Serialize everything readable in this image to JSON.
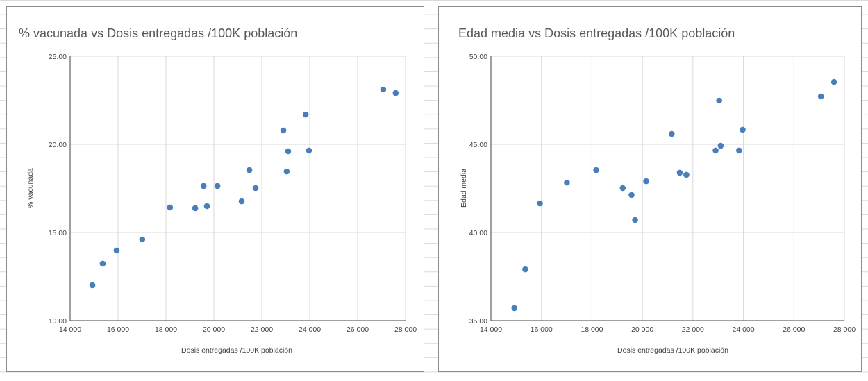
{
  "chart_data": [
    {
      "type": "scatter",
      "title": "% vacunada vs Dosis entregadas /100K población",
      "xlabel": "Dosis entregadas /100K población",
      "ylabel": "% vacunada",
      "xlim": [
        14000,
        28000
      ],
      "ylim": [
        10,
        25
      ],
      "xticks": [
        14000,
        16000,
        18000,
        20000,
        22000,
        24000,
        26000,
        28000
      ],
      "xtick_labels": [
        "14 000",
        "16 000",
        "18 000",
        "20 000",
        "22 000",
        "24 000",
        "26 000",
        "28 000"
      ],
      "yticks": [
        10,
        15,
        20,
        25
      ],
      "ytick_labels": [
        "10.00",
        "15.00",
        "20.00",
        "25.00"
      ],
      "grid": true,
      "color": "#4a7ebb",
      "x": [
        14930,
        15360,
        15940,
        17010,
        18170,
        19220,
        19570,
        19710,
        20150,
        21160,
        21480,
        21740,
        22900,
        23040,
        23100,
        23830,
        23970,
        27070,
        27590
      ],
      "y": [
        12.01,
        13.23,
        13.98,
        14.61,
        16.42,
        16.38,
        17.64,
        16.5,
        17.64,
        16.77,
        18.54,
        17.52,
        20.79,
        18.46,
        19.61,
        21.69,
        19.65,
        23.11,
        22.91
      ]
    },
    {
      "type": "scatter",
      "title": "Edad media vs Dosis entregadas /100K población",
      "xlabel": "Dosis entregadas /100K población",
      "ylabel": "Edad media",
      "xlim": [
        14000,
        28000
      ],
      "ylim": [
        35,
        50
      ],
      "xticks": [
        14000,
        16000,
        18000,
        20000,
        22000,
        24000,
        26000,
        28000
      ],
      "xtick_labels": [
        "14 000",
        "16 000",
        "18 000",
        "20 000",
        "22 000",
        "24 000",
        "26 000",
        "28 000"
      ],
      "yticks": [
        35,
        40,
        45,
        50
      ],
      "ytick_labels": [
        "35.00",
        "40.00",
        "45.00",
        "50.00"
      ],
      "grid": true,
      "color": "#4a7ebb",
      "x": [
        14930,
        15360,
        15940,
        17010,
        18170,
        19220,
        19570,
        19710,
        20150,
        21160,
        21480,
        21740,
        22900,
        23040,
        23100,
        23830,
        23970,
        27070,
        27590
      ],
      "y": [
        35.71,
        37.91,
        41.65,
        42.83,
        43.54,
        42.52,
        42.13,
        40.71,
        42.91,
        45.59,
        43.39,
        43.27,
        44.65,
        47.48,
        44.92,
        44.65,
        45.83,
        47.72,
        48.54
      ]
    }
  ]
}
